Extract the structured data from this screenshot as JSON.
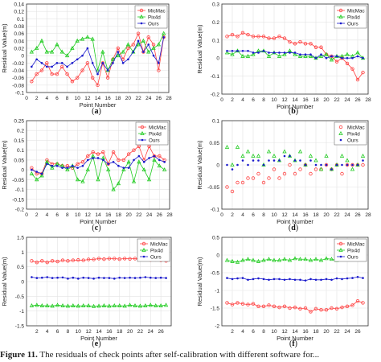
{
  "caption": {
    "label": "Figure 11.",
    "text": "The residuals of check points after self-calibration with different software for..."
  },
  "chart_data": [
    {
      "type": "line",
      "panel": "(a)",
      "xlabel": "Point Number",
      "ylabel": "Residual Value(m)",
      "xlim": [
        0,
        28
      ],
      "ylim": [
        -0.1,
        0.14
      ],
      "xticks": [
        0,
        2,
        4,
        6,
        8,
        10,
        12,
        14,
        16,
        18,
        20,
        22,
        24,
        26,
        28
      ],
      "yticks": [
        -0.1,
        -0.08,
        -0.06,
        -0.04,
        -0.02,
        0,
        0.02,
        0.04,
        0.06,
        0.08,
        0.1,
        0.12,
        0.14
      ],
      "ytick_labels": [
        "-0.1",
        "-0.08",
        "-0.06",
        "-0.04",
        "-0.02",
        "0",
        "0.02",
        "0.04",
        "0.06",
        "0.08",
        "0.1",
        "0.12",
        "0.14"
      ],
      "legend": "top-right",
      "grid": true,
      "x": [
        1,
        2,
        3,
        4,
        5,
        6,
        7,
        8,
        9,
        10,
        11,
        12,
        13,
        14,
        15,
        16,
        17,
        18,
        19,
        20,
        21,
        22,
        23,
        24,
        25,
        26,
        27
      ],
      "series": [
        {
          "name": "MicMac",
          "color": "#ff4040",
          "marker": "circle",
          "values": [
            -0.07,
            -0.05,
            -0.04,
            -0.02,
            -0.05,
            -0.05,
            -0.03,
            -0.05,
            -0.07,
            -0.06,
            -0.04,
            -0.02,
            -0.06,
            -0.08,
            -0.02,
            -0.06,
            -0.01,
            0.02,
            -0.01,
            0.02,
            0.03,
            0.06,
            0.01,
            0.05,
            0.03,
            -0.04,
            0.05
          ]
        },
        {
          "name": "Pix4d",
          "color": "#22cc22",
          "marker": "triangle",
          "values": [
            0.01,
            0.02,
            0.04,
            0.01,
            0.01,
            0.03,
            0.01,
            0.0,
            0.02,
            0.04,
            0.045,
            0.05,
            0.045,
            -0.04,
            0.01,
            -0.04,
            -0.01,
            0.0,
            0.01,
            0.03,
            0.01,
            0.03,
            0.04,
            0.01,
            0.02,
            0.03,
            0.06
          ]
        },
        {
          "name": "Ours",
          "color": "#1a1acc",
          "marker": "point",
          "values": [
            -0.03,
            -0.01,
            -0.02,
            -0.03,
            -0.03,
            -0.02,
            -0.02,
            -0.03,
            -0.02,
            -0.01,
            0.0,
            0.02,
            -0.02,
            -0.05,
            -0.02,
            -0.04,
            -0.02,
            0.01,
            -0.02,
            -0.01,
            0.01,
            0.04,
            0.01,
            0.03,
            0.0,
            -0.02,
            0.05
          ]
        }
      ]
    },
    {
      "type": "line",
      "panel": "(b)",
      "xlabel": "Point Number",
      "ylabel": "Residual Value(m)",
      "xlim": [
        0,
        28
      ],
      "ylim": [
        -0.2,
        0.3
      ],
      "xticks": [
        0,
        2,
        4,
        6,
        8,
        10,
        12,
        14,
        16,
        18,
        20,
        22,
        24,
        26,
        28
      ],
      "yticks": [
        -0.2,
        -0.1,
        0,
        0.1,
        0.2,
        0.3
      ],
      "ytick_labels": [
        "-0.2",
        "-0.1",
        "0",
        "0.1",
        "0.2",
        "0.3"
      ],
      "legend": "top-right",
      "grid": true,
      "x": [
        1,
        2,
        3,
        4,
        5,
        6,
        7,
        8,
        9,
        10,
        11,
        12,
        13,
        14,
        15,
        16,
        17,
        18,
        19,
        20,
        21,
        22,
        23,
        24,
        25,
        26,
        27
      ],
      "series": [
        {
          "name": "MicMac",
          "color": "#ff4040",
          "marker": "circle",
          "values": [
            0.12,
            0.13,
            0.12,
            0.14,
            0.13,
            0.12,
            0.12,
            0.12,
            0.11,
            0.11,
            0.12,
            0.11,
            0.09,
            0.08,
            0.09,
            0.08,
            0.08,
            0.06,
            0.06,
            0.02,
            0.01,
            -0.02,
            0.0,
            -0.03,
            -0.06,
            -0.12,
            -0.08
          ]
        },
        {
          "name": "Pix4d",
          "color": "#22cc22",
          "marker": "triangle",
          "values": [
            0.03,
            0.02,
            0.04,
            0.01,
            0.01,
            0.02,
            0.04,
            0.04,
            0.01,
            0.03,
            0.01,
            0.02,
            0.04,
            0.02,
            0.01,
            0.01,
            0.01,
            0.0,
            0.01,
            0.02,
            -0.01,
            0.01,
            0.01,
            0.02,
            0.01,
            0.03,
            0.0
          ]
        },
        {
          "name": "Ours",
          "color": "#1a1acc",
          "marker": "point",
          "values": [
            0.04,
            0.04,
            0.04,
            0.04,
            0.04,
            0.03,
            0.03,
            0.04,
            0.03,
            0.03,
            0.03,
            0.03,
            0.03,
            0.03,
            0.02,
            0.02,
            0.02,
            0.0,
            0.02,
            0.0,
            0.01,
            0.01,
            0.0,
            0.0,
            0.0,
            0.01,
            0.0
          ]
        }
      ]
    },
    {
      "type": "line",
      "panel": "(c)",
      "xlabel": "Point Number",
      "ylabel": "Residual Value(m)",
      "xlim": [
        0,
        28
      ],
      "ylim": [
        -0.2,
        0.25
      ],
      "xticks": [
        0,
        2,
        4,
        6,
        8,
        10,
        12,
        14,
        16,
        18,
        20,
        22,
        24,
        26,
        28
      ],
      "yticks": [
        -0.2,
        -0.15,
        -0.1,
        -0.05,
        0,
        0.05,
        0.1,
        0.15,
        0.2,
        0.25
      ],
      "ytick_labels": [
        "-0.2",
        "-0.15",
        "-0.1",
        "-0.05",
        "0",
        "0.05",
        "0.1",
        "0.15",
        "0.2",
        "0.25"
      ],
      "legend": "top-right",
      "grid": true,
      "x": [
        1,
        2,
        3,
        4,
        5,
        6,
        7,
        8,
        9,
        10,
        11,
        12,
        13,
        14,
        15,
        16,
        17,
        18,
        19,
        20,
        21,
        22,
        23,
        24,
        25,
        26,
        27
      ],
      "series": [
        {
          "name": "MicMac",
          "color": "#ff4040",
          "marker": "circle",
          "values": [
            0.01,
            -0.02,
            -0.02,
            0.05,
            0.03,
            0.03,
            0.02,
            0.02,
            0.01,
            0.03,
            0.04,
            0.07,
            0.09,
            0.08,
            0.09,
            0.03,
            0.09,
            0.05,
            0.05,
            0.08,
            0.1,
            0.12,
            0.05,
            0.12,
            0.07,
            0.07,
            0.05
          ]
        },
        {
          "name": "Pix4d",
          "color": "#22cc22",
          "marker": "triangle",
          "values": [
            -0.02,
            -0.05,
            -0.03,
            0.04,
            0.01,
            0.03,
            0.02,
            0.0,
            0.02,
            -0.05,
            -0.06,
            0.0,
            0.07,
            -0.05,
            0.06,
            0.0,
            -0.1,
            -0.07,
            0.0,
            0.04,
            -0.06,
            0.04,
            0.0,
            -0.05,
            0.05,
            0.02,
            0.0
          ]
        },
        {
          "name": "Ours",
          "color": "#1a1acc",
          "marker": "point",
          "values": [
            0.0,
            -0.01,
            -0.02,
            0.03,
            0.02,
            0.02,
            0.01,
            0.01,
            0.02,
            0.01,
            0.02,
            0.05,
            0.06,
            0.06,
            0.05,
            0.03,
            0.04,
            0.02,
            0.01,
            0.01,
            0.05,
            0.07,
            0.04,
            0.06,
            0.07,
            0.05,
            0.04
          ]
        }
      ]
    },
    {
      "type": "scatter",
      "panel": "(d)",
      "xlabel": "Point Number",
      "ylabel": "Residual Value(m)",
      "xlim": [
        0,
        28
      ],
      "ylim": [
        -0.1,
        0.1
      ],
      "xticks": [
        0,
        2,
        4,
        6,
        8,
        10,
        12,
        14,
        16,
        18,
        20,
        22,
        24,
        26,
        28
      ],
      "yticks": [
        -0.1,
        -0.05,
        0,
        0.05,
        0.1
      ],
      "ytick_labels": [
        "-0.1",
        "-0.05",
        "0",
        "0.05",
        "0.1"
      ],
      "legend": "top-right",
      "grid": true,
      "x": [
        1,
        2,
        3,
        4,
        5,
        6,
        7,
        8,
        9,
        10,
        11,
        12,
        13,
        14,
        15,
        16,
        17,
        18,
        19,
        20,
        21,
        22,
        23,
        24,
        25,
        26,
        27
      ],
      "series": [
        {
          "name": "MicMac",
          "color": "#ff4040",
          "marker": "circle",
          "values": [
            -0.05,
            -0.06,
            -0.04,
            -0.04,
            -0.03,
            -0.03,
            -0.02,
            -0.04,
            -0.03,
            -0.01,
            -0.03,
            -0.02,
            0.0,
            -0.02,
            -0.01,
            0.0,
            -0.02,
            -0.01,
            -0.01,
            0.0,
            -0.01,
            0.0,
            -0.02,
            0.0,
            0.0,
            0.0,
            0.0
          ]
        },
        {
          "name": "Pix4d",
          "color": "#22cc22",
          "marker": "triangle",
          "values": [
            0.04,
            0.0,
            0.04,
            0.02,
            0.03,
            0.02,
            0.02,
            0.0,
            0.03,
            0.02,
            0.01,
            0.03,
            0.02,
            0.01,
            0.03,
            0.0,
            0.02,
            0.01,
            -0.01,
            0.02,
            -0.01,
            0.0,
            0.02,
            0.01,
            -0.01,
            0.0,
            0.02
          ]
        },
        {
          "name": "Ours",
          "color": "#1a1acc",
          "marker": "point",
          "values": [
            0.0,
            -0.01,
            0.0,
            0.01,
            0.0,
            0.01,
            0.01,
            0.0,
            0.01,
            0.01,
            0.01,
            0.02,
            0.02,
            0.01,
            0.01,
            0.0,
            0.01,
            0.0,
            0.0,
            0.0,
            -0.01,
            0.0,
            0.0,
            0.0,
            0.0,
            0.0,
            0.01
          ]
        }
      ]
    },
    {
      "type": "line",
      "panel": "(e)",
      "xlabel": "Point Number",
      "ylabel": "Residual Value(m)",
      "xlim": [
        0,
        28
      ],
      "ylim": [
        -1.5,
        1.5
      ],
      "xticks": [
        2,
        4,
        6,
        8,
        10,
        12,
        14,
        16,
        18,
        20,
        22,
        24,
        26
      ],
      "yticks": [
        -1.5,
        -1,
        -0.5,
        0,
        0.5,
        1,
        1.5
      ],
      "ytick_labels": [
        "-1.5",
        "-1",
        "-0.5",
        "0",
        "0.5",
        "1",
        "1.5"
      ],
      "legend": "top-right",
      "grid": true,
      "x": [
        1,
        2,
        3,
        4,
        5,
        6,
        7,
        8,
        9,
        10,
        11,
        12,
        13,
        14,
        15,
        16,
        17,
        18,
        19,
        20,
        21,
        22,
        23,
        24,
        25,
        26,
        27
      ],
      "series": [
        {
          "name": "MicMac",
          "color": "#ff4040",
          "marker": "circle",
          "values": [
            0.7,
            0.65,
            0.7,
            0.65,
            0.7,
            0.68,
            0.72,
            0.7,
            0.72,
            0.73,
            0.72,
            0.75,
            0.75,
            0.78,
            0.76,
            0.78,
            0.78,
            0.76,
            0.78,
            0.77,
            0.78,
            0.75,
            0.76,
            0.73,
            0.74,
            0.72,
            0.7
          ]
        },
        {
          "name": "Pix4d",
          "color": "#22cc22",
          "marker": "triangle",
          "values": [
            -0.82,
            -0.8,
            -0.82,
            -0.82,
            -0.83,
            -0.8,
            -0.82,
            -0.83,
            -0.82,
            -0.83,
            -0.82,
            -0.82,
            -0.84,
            -0.83,
            -0.82,
            -0.83,
            -0.82,
            -0.82,
            -0.83,
            -0.8,
            -0.82,
            -0.83,
            -0.82,
            -0.8,
            -0.82,
            -0.82,
            -0.8
          ]
        },
        {
          "name": "Ours",
          "color": "#1a1acc",
          "marker": "point",
          "values": [
            0.15,
            0.12,
            0.13,
            0.15,
            0.12,
            0.13,
            0.14,
            0.1,
            0.13,
            0.1,
            0.13,
            0.12,
            0.1,
            0.13,
            0.12,
            0.12,
            0.1,
            0.13,
            0.12,
            0.13,
            0.12,
            0.13,
            0.15,
            0.13,
            0.12,
            0.13,
            0.12
          ]
        }
      ]
    },
    {
      "type": "line",
      "panel": "(f)",
      "xlabel": "Point Number",
      "ylabel": "Residual Value(m)",
      "xlim": [
        0,
        28
      ],
      "ylim": [
        -2,
        0.5
      ],
      "xticks": [
        2,
        4,
        6,
        8,
        10,
        12,
        14,
        16,
        18,
        20,
        22,
        24,
        26
      ],
      "yticks": [
        -2,
        -1.5,
        -1,
        -0.5,
        0,
        0.5
      ],
      "ytick_labels": [
        "-2",
        "-1.5",
        "-1",
        "-0.5",
        "0",
        "0.5"
      ],
      "legend": "top-right",
      "grid": true,
      "x": [
        1,
        2,
        3,
        4,
        5,
        6,
        7,
        8,
        9,
        10,
        11,
        12,
        13,
        14,
        15,
        16,
        17,
        18,
        19,
        20,
        21,
        22,
        23,
        24,
        25,
        26,
        27
      ],
      "series": [
        {
          "name": "MicMac",
          "color": "#ff4040",
          "marker": "circle",
          "values": [
            -1.35,
            -1.4,
            -1.35,
            -1.38,
            -1.4,
            -1.38,
            -1.45,
            -1.45,
            -1.42,
            -1.45,
            -1.48,
            -1.45,
            -1.5,
            -1.48,
            -1.52,
            -1.5,
            -1.6,
            -1.52,
            -1.55,
            -1.55,
            -1.5,
            -1.52,
            -1.48,
            -1.45,
            -1.42,
            -1.3,
            -1.35
          ]
        },
        {
          "name": "Pix4d",
          "color": "#22cc22",
          "marker": "triangle",
          "values": [
            -0.15,
            -0.18,
            -0.2,
            -0.15,
            -0.12,
            -0.15,
            -0.18,
            -0.15,
            -0.12,
            -0.15,
            -0.15,
            -0.12,
            -0.15,
            -0.1,
            -0.12,
            -0.12,
            -0.15,
            -0.12,
            -0.15,
            -0.1,
            -0.12,
            -0.15,
            -0.12,
            -0.1,
            -0.12,
            -0.1,
            -0.1
          ]
        },
        {
          "name": "Ours",
          "color": "#1a1acc",
          "marker": "point",
          "values": [
            -0.65,
            -0.68,
            -0.66,
            -0.65,
            -0.7,
            -0.68,
            -0.66,
            -0.68,
            -0.7,
            -0.68,
            -0.68,
            -0.7,
            -0.68,
            -0.7,
            -0.7,
            -0.72,
            -0.68,
            -0.7,
            -0.7,
            -0.68,
            -0.7,
            -0.66,
            -0.68,
            -0.66,
            -0.65,
            -0.62,
            -0.65
          ]
        }
      ]
    }
  ]
}
